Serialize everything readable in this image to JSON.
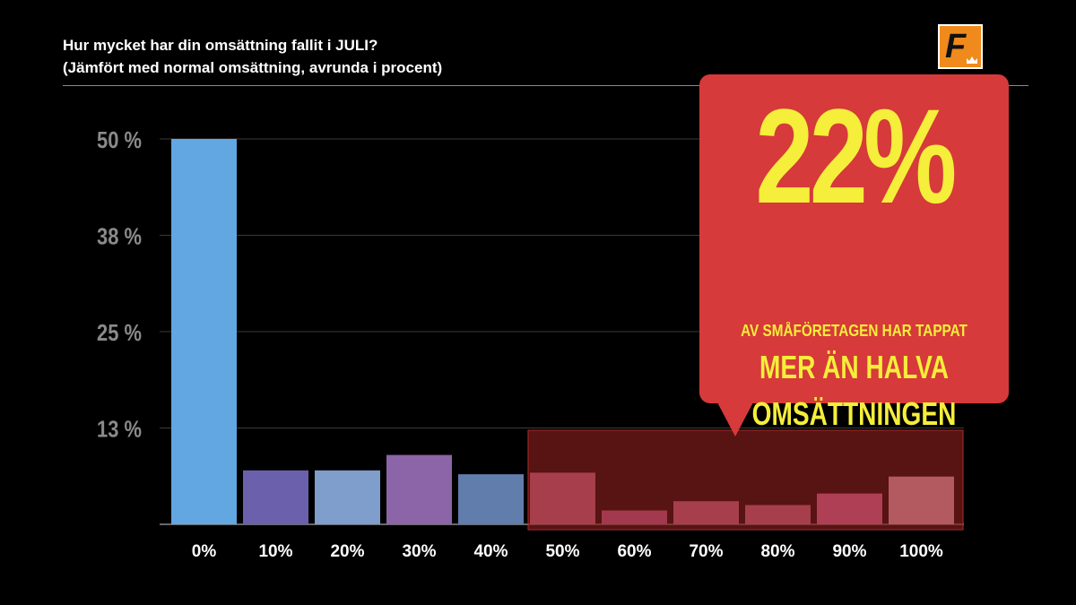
{
  "header": {
    "title_line1": "Hur mycket har din omsättning fallit i JULI?",
    "title_line2": "(Jämfört med normal omsättning, avrunda i procent)"
  },
  "logo": {
    "letter": "F",
    "icon": "crown-icon",
    "color": "#f08a1c"
  },
  "callout": {
    "big_value": "22%",
    "line1": "AV SMÅFÖRETAGEN HAR TAPPAT",
    "line2": "MER ÄN HALVA",
    "line3": "OMSÄTTNINGEN",
    "background": "#d63a3a",
    "text_color": "#f5ee3a"
  },
  "chart_data": {
    "type": "bar",
    "title": "",
    "xlabel": "",
    "ylabel": "",
    "categories": [
      "0%",
      "10%",
      "20%",
      "30%",
      "40%",
      "50%",
      "60%",
      "70%",
      "80%",
      "90%",
      "100%"
    ],
    "values": [
      50,
      7,
      7,
      9,
      6.5,
      6.7,
      1.8,
      3,
      2.5,
      4,
      6.2
    ],
    "colors": [
      "#62a6e2",
      "#6b60ac",
      "#7f9ecb",
      "#8c64a8",
      "#607dab",
      "#b54d5d",
      "#b04560",
      "#b54d5d",
      "#b54d5d",
      "#c04d6a",
      "#c66f78"
    ],
    "yticks": [
      {
        "value": 12.5,
        "label": "13 %"
      },
      {
        "value": 25,
        "label": "25 %"
      },
      {
        "value": 37.5,
        "label": "38 %"
      },
      {
        "value": 50,
        "label": "50 %"
      }
    ],
    "ylim": [
      0,
      50
    ],
    "grid": true,
    "highlight": {
      "from_category": "50%",
      "to_category": "100%",
      "color": "#8a2020"
    }
  }
}
